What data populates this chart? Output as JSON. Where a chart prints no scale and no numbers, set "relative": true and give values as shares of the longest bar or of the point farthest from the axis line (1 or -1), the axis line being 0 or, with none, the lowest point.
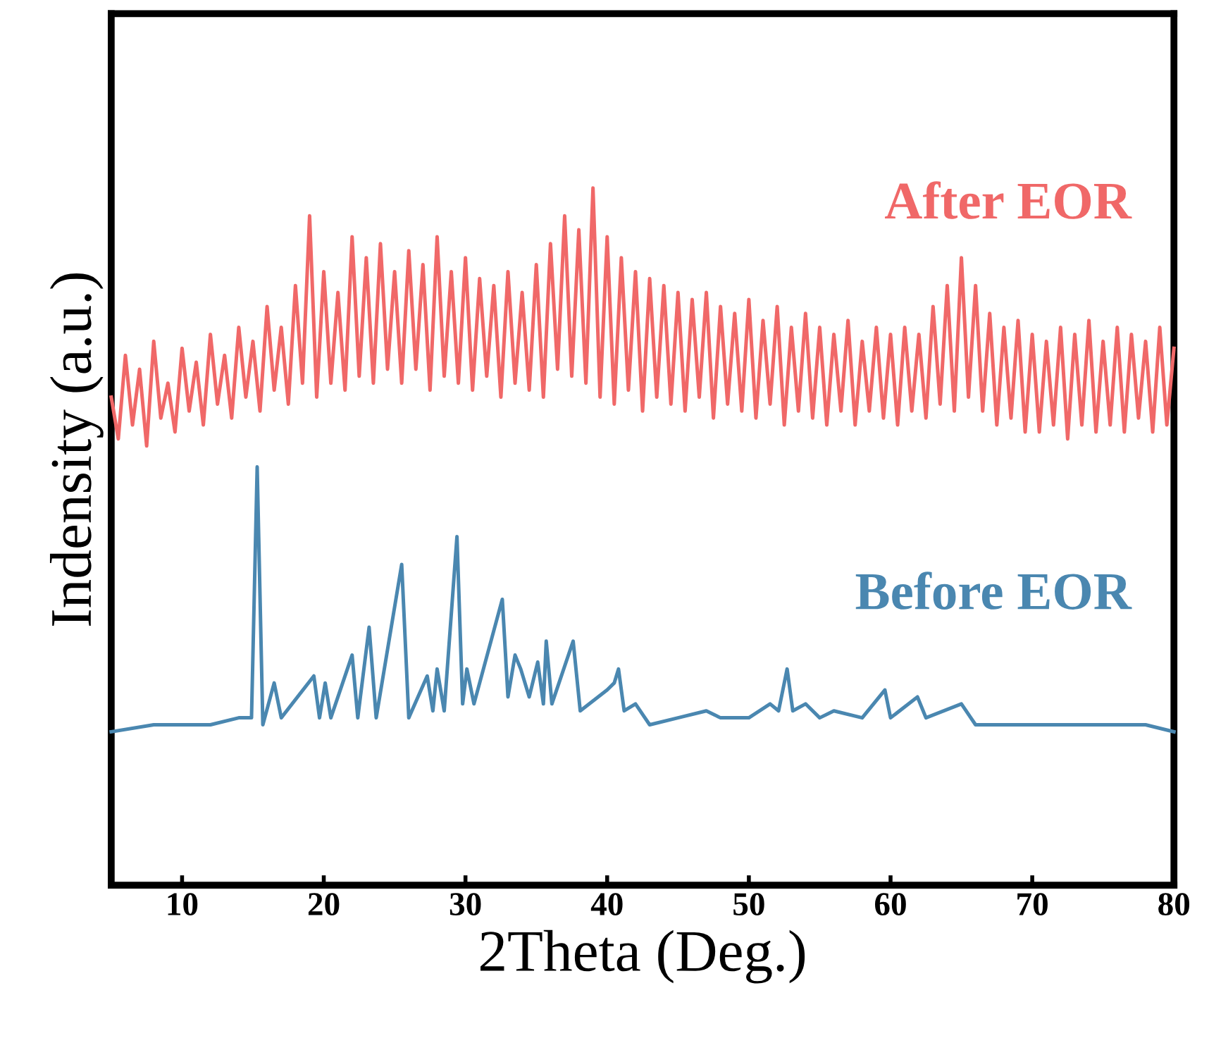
{
  "chart_data": {
    "type": "line",
    "relative": true,
    "xlabel": "2Theta (Deg.)",
    "ylabel": "Indensity (a.u.)",
    "xlim": [
      5,
      80
    ],
    "xticks": [
      10,
      20,
      30,
      40,
      50,
      60,
      70,
      80
    ],
    "tick_labels": "x",
    "grid": false,
    "legend": false,
    "marker": "none",
    "line_style": "solid",
    "series": [
      {
        "name": "After EOR",
        "color": "#f06868",
        "x": [
          5,
          5.5,
          6,
          6.5,
          7,
          7.5,
          8,
          8.5,
          9,
          9.5,
          10,
          10.5,
          11,
          11.5,
          12,
          12.5,
          13,
          13.5,
          14,
          14.5,
          15,
          15.5,
          16,
          16.5,
          17,
          17.5,
          18,
          18.5,
          19,
          19.5,
          20,
          20.5,
          21,
          21.5,
          22,
          22.5,
          23,
          23.5,
          24,
          24.5,
          25,
          25.5,
          26,
          26.5,
          27,
          27.5,
          28,
          28.5,
          29,
          29.5,
          30,
          30.5,
          31,
          31.5,
          32,
          32.5,
          33,
          33.5,
          34,
          34.5,
          35,
          35.5,
          36,
          36.5,
          37,
          37.5,
          38,
          38.5,
          39,
          39.5,
          40,
          40.5,
          41,
          41.5,
          42,
          42.5,
          43,
          43.5,
          44,
          44.5,
          45,
          45.5,
          46,
          46.5,
          47,
          47.5,
          48,
          48.5,
          49,
          49.5,
          50,
          50.5,
          51,
          51.5,
          52,
          52.5,
          53,
          53.5,
          54,
          54.5,
          55,
          55.5,
          56,
          56.5,
          57,
          57.5,
          58,
          58.5,
          59,
          59.5,
          60,
          60.5,
          61,
          61.5,
          62,
          62.5,
          63,
          63.5,
          64,
          64.5,
          65,
          65.5,
          66,
          66.5,
          67,
          67.5,
          68,
          68.5,
          69,
          69.5,
          70,
          70.5,
          71,
          71.5,
          72,
          72.5,
          73,
          73.5,
          74,
          74.5,
          75,
          75.5,
          76,
          76.5,
          77,
          77.5,
          78,
          78.5,
          79,
          79.5,
          80
        ],
        "values": [
          0.7,
          0.64,
          0.76,
          0.66,
          0.74,
          0.63,
          0.78,
          0.67,
          0.72,
          0.65,
          0.77,
          0.68,
          0.75,
          0.66,
          0.79,
          0.69,
          0.76,
          0.67,
          0.8,
          0.7,
          0.78,
          0.68,
          0.83,
          0.71,
          0.8,
          0.69,
          0.86,
          0.72,
          0.96,
          0.7,
          0.88,
          0.72,
          0.85,
          0.71,
          0.93,
          0.73,
          0.9,
          0.72,
          0.92,
          0.74,
          0.88,
          0.72,
          0.91,
          0.74,
          0.89,
          0.71,
          0.93,
          0.73,
          0.88,
          0.72,
          0.9,
          0.71,
          0.87,
          0.73,
          0.86,
          0.7,
          0.88,
          0.72,
          0.85,
          0.71,
          0.89,
          0.7,
          0.92,
          0.74,
          0.96,
          0.73,
          0.94,
          0.72,
          1.0,
          0.7,
          0.93,
          0.69,
          0.9,
          0.71,
          0.88,
          0.68,
          0.87,
          0.7,
          0.86,
          0.69,
          0.85,
          0.68,
          0.84,
          0.7,
          0.85,
          0.67,
          0.83,
          0.69,
          0.82,
          0.68,
          0.84,
          0.67,
          0.81,
          0.69,
          0.83,
          0.66,
          0.8,
          0.68,
          0.82,
          0.67,
          0.8,
          0.66,
          0.79,
          0.68,
          0.81,
          0.66,
          0.78,
          0.68,
          0.8,
          0.67,
          0.79,
          0.66,
          0.8,
          0.68,
          0.79,
          0.67,
          0.83,
          0.69,
          0.86,
          0.68,
          0.9,
          0.7,
          0.86,
          0.68,
          0.82,
          0.66,
          0.8,
          0.67,
          0.81,
          0.65,
          0.79,
          0.65,
          0.78,
          0.66,
          0.8,
          0.64,
          0.79,
          0.66,
          0.81,
          0.65,
          0.78,
          0.66,
          0.8,
          0.65,
          0.79,
          0.67,
          0.78,
          0.65,
          0.8,
          0.66,
          0.77
        ]
      },
      {
        "name": "Before EOR",
        "color": "#4a87b0",
        "x": [
          5,
          8,
          12,
          14,
          14.9,
          15.3,
          15.7,
          16.5,
          17,
          19.3,
          19.7,
          20.1,
          20.5,
          22,
          22.4,
          23.2,
          23.7,
          25.5,
          26,
          27.3,
          27.7,
          28,
          28.5,
          29.4,
          29.8,
          30.1,
          30.6,
          32.6,
          33,
          33.5,
          33.9,
          34.5,
          35.1,
          35.5,
          35.7,
          36.1,
          37.6,
          38.1,
          40,
          40.5,
          40.8,
          41.2,
          42,
          43,
          45,
          47,
          48,
          50,
          51.5,
          52.1,
          52.7,
          53.1,
          54,
          55,
          56,
          58,
          59.6,
          60,
          61.9,
          62.5,
          65,
          66,
          70,
          75,
          78,
          80
        ],
        "values": [
          0.22,
          0.23,
          0.23,
          0.24,
          0.24,
          0.6,
          0.23,
          0.29,
          0.24,
          0.3,
          0.24,
          0.29,
          0.24,
          0.33,
          0.24,
          0.37,
          0.24,
          0.46,
          0.24,
          0.3,
          0.25,
          0.31,
          0.25,
          0.5,
          0.26,
          0.31,
          0.26,
          0.41,
          0.27,
          0.33,
          0.31,
          0.27,
          0.32,
          0.26,
          0.35,
          0.26,
          0.35,
          0.25,
          0.28,
          0.29,
          0.31,
          0.25,
          0.26,
          0.23,
          0.24,
          0.25,
          0.24,
          0.24,
          0.26,
          0.25,
          0.31,
          0.25,
          0.26,
          0.24,
          0.25,
          0.24,
          0.28,
          0.24,
          0.27,
          0.24,
          0.26,
          0.23,
          0.23,
          0.23,
          0.23,
          0.22
        ]
      }
    ]
  }
}
